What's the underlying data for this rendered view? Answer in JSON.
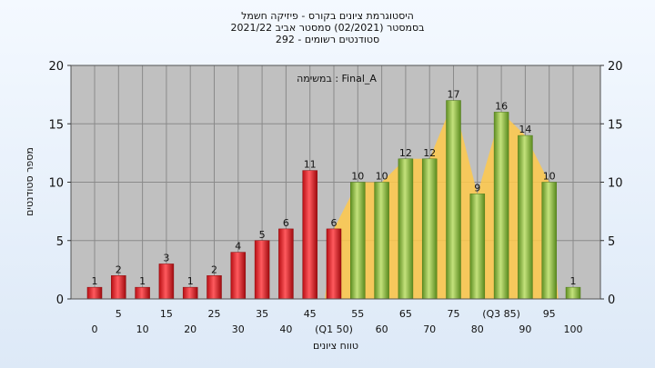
{
  "header": {
    "line1": "היסטוגרמת ציונים בקורס - פיזיקה חשמל",
    "line2": "בסמסטר  (02/2021)  סמסטר אביב 2021/22",
    "line3": "סטודנטים רשומים - 292"
  },
  "chart_data": {
    "type": "bar",
    "annotation": "במשימה : Final_A",
    "xlabel": "טווח ציונים",
    "ylabel": "מספר סטודנטים",
    "ylim": [
      0,
      20
    ],
    "yticks": [
      0,
      5,
      10,
      15,
      20
    ],
    "grid": true,
    "categories": [
      0,
      5,
      10,
      15,
      20,
      25,
      30,
      35,
      40,
      45,
      50,
      55,
      60,
      65,
      70,
      75,
      80,
      85,
      90,
      95,
      100
    ],
    "values": [
      1,
      2,
      1,
      3,
      1,
      2,
      4,
      5,
      6,
      11,
      6,
      10,
      10,
      12,
      12,
      17,
      9,
      16,
      14,
      10,
      1
    ],
    "x_tick_labels_upper": [
      "5",
      "15",
      "25",
      "35",
      "45",
      "55",
      "65",
      "75",
      "(Q3 85)",
      "95"
    ],
    "x_tick_labels_lower": [
      "0",
      "10",
      "20",
      "30",
      "40",
      "(Q1 50)",
      "60",
      "70",
      "80",
      "90",
      "100"
    ],
    "fail_threshold": 50,
    "colors": {
      "fail_bar": "#e8242a",
      "pass_bar": "#8cbd3e",
      "area": "#ffc94a",
      "plot_bg": "#c0c0c0",
      "grid": "#8a8a8a"
    }
  }
}
